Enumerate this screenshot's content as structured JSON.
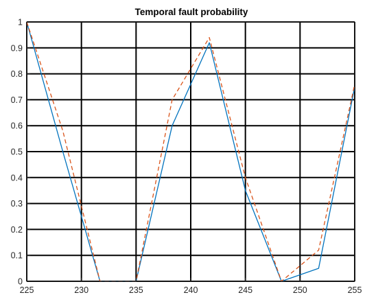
{
  "chart_data": {
    "type": "line",
    "title": "Temporal fault probability",
    "xlabel": "",
    "ylabel": "",
    "xlim": [
      225,
      255
    ],
    "ylim": [
      0,
      1
    ],
    "xticks": [
      225,
      230,
      235,
      240,
      245,
      250,
      255
    ],
    "yticks": [
      0,
      0.1,
      0.2,
      0.3,
      0.4,
      0.5,
      0.6,
      0.7,
      0.8,
      0.9,
      1
    ],
    "xtick_labels": [
      "225",
      "230",
      "235",
      "240",
      "245",
      "250",
      "255"
    ],
    "ytick_labels": [
      "0",
      "0.1",
      "0.2",
      "0.3",
      "0.4",
      "0.5",
      "0.6",
      "0.7",
      "0.8",
      "0.9",
      "1"
    ],
    "grid": true,
    "legend": false,
    "series": [
      {
        "color": "#0072BD",
        "line_style": "solid",
        "x": [
          225,
          228.3,
          231.7,
          235,
          238.3,
          241.7,
          245,
          248.3,
          251.7,
          255
        ],
        "y": [
          1.0,
          0.5,
          0.0,
          0.0,
          0.6,
          0.92,
          0.35,
          0.0,
          0.05,
          0.75
        ]
      },
      {
        "color": "#D95319",
        "line_style": "dashed",
        "x": [
          225,
          228.3,
          231.7,
          235,
          238.3,
          241.7,
          245,
          248.3,
          251.7,
          255
        ],
        "y": [
          1.0,
          0.58,
          0.0,
          0.0,
          0.7,
          0.94,
          0.4,
          0.0,
          0.12,
          0.76
        ]
      }
    ]
  }
}
